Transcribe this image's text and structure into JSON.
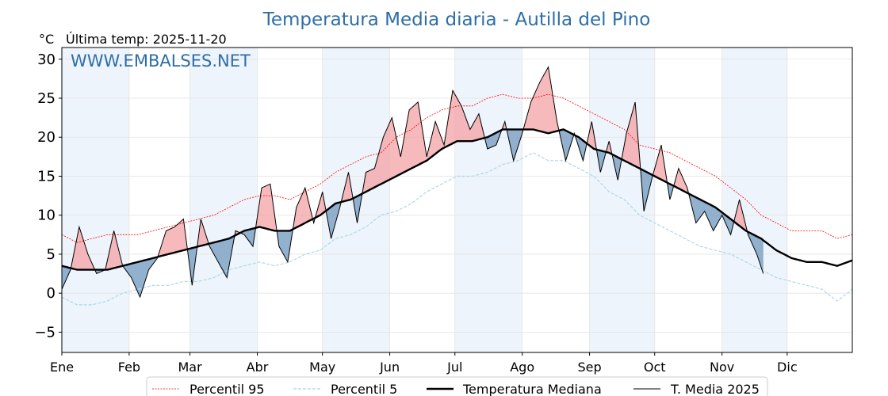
{
  "chart_data": {
    "type": "line",
    "title": "Temperatura Media diaria - Autilla del Pino",
    "ylabel": "°C",
    "subtitle": "Última temp: 2025-11-20",
    "watermark": "WWW.EMBALSES.NET",
    "xlabel": "",
    "xlim": [
      0,
      364
    ],
    "ylim": [
      -7.6,
      31.5
    ],
    "yticks": [
      -5,
      0,
      5,
      10,
      15,
      20,
      25,
      30
    ],
    "xticks": [
      {
        "label": "Ene",
        "day": 0
      },
      {
        "label": "Feb",
        "day": 31
      },
      {
        "label": "Mar",
        "day": 59
      },
      {
        "label": "Abr",
        "day": 90
      },
      {
        "label": "May",
        "day": 120
      },
      {
        "label": "Jun",
        "day": 151
      },
      {
        "label": "Jul",
        "day": 181
      },
      {
        "label": "Ago",
        "day": 212
      },
      {
        "label": "Sep",
        "day": 243
      },
      {
        "label": "Oct",
        "day": 273
      },
      {
        "label": "Nov",
        "day": 304
      },
      {
        "label": "Dic",
        "day": 334
      }
    ],
    "grid": true,
    "legend_position": "bottom-center",
    "colors": {
      "p95": "#ff0000",
      "p5": "#add8e6",
      "median": "#000000",
      "t2025": "#000000",
      "above": "#f4a3a6",
      "below": "#7fa3c6",
      "band": "#eef4fb",
      "title": "#2e6ea6"
    },
    "series": [
      {
        "name": "Percentil 95",
        "x_step": 7,
        "values": [
          7.5,
          6.5,
          7,
          7.5,
          7.5,
          7.5,
          8,
          8.5,
          9,
          9.5,
          10,
          11,
          12,
          12.5,
          12.5,
          12,
          13,
          14,
          15.5,
          16.5,
          17.5,
          18,
          20,
          21,
          22.5,
          23.5,
          24,
          24,
          25,
          25.5,
          25,
          25,
          25.5,
          25,
          24,
          23,
          22,
          21,
          19,
          18.5,
          18,
          17,
          16,
          15,
          13.5,
          12,
          10,
          9,
          8,
          8,
          8,
          7,
          7.5
        ]
      },
      {
        "name": "Percentil 5",
        "x_step": 7,
        "values": [
          -0.5,
          -1.5,
          -1.5,
          -1,
          0,
          0.5,
          1,
          1,
          1.5,
          1.5,
          2,
          3,
          3.5,
          4,
          3.5,
          4,
          5,
          5.5,
          7,
          7.5,
          8.5,
          10,
          10.5,
          11.5,
          13,
          14,
          15,
          15,
          15.5,
          16.5,
          17,
          18,
          17,
          17,
          16,
          15,
          13,
          12,
          10,
          9,
          8,
          7,
          6,
          5.5,
          5,
          4,
          3,
          2,
          1.5,
          1,
          0.5,
          -1,
          0.5
        ]
      },
      {
        "name": "Temperatura Mediana",
        "x_step": 7,
        "values": [
          3.5,
          3,
          3,
          3,
          3.5,
          4,
          4.5,
          5,
          5.5,
          6,
          6.5,
          7,
          8,
          8.5,
          8,
          8,
          9,
          10,
          11.5,
          12,
          13,
          14,
          15,
          16,
          17,
          18.5,
          19.5,
          19.5,
          20,
          21,
          21,
          21,
          20.5,
          21,
          20,
          18.5,
          18,
          17,
          16,
          15,
          14,
          13,
          12,
          11,
          9.5,
          8,
          7,
          5.5,
          4.5,
          4,
          4,
          3.5,
          4.2
        ]
      },
      {
        "name": "T. Media 2025",
        "x_step": 4,
        "values": [
          0.5,
          3,
          8.5,
          5,
          2.5,
          3,
          8,
          3.5,
          2,
          -0.5,
          3,
          4.5,
          8,
          8.5,
          9.5,
          1,
          9.5,
          6,
          4,
          2,
          8,
          7.5,
          6,
          13.5,
          14,
          6,
          4,
          11,
          13.5,
          9,
          13,
          7,
          11,
          15.5,
          9,
          15.5,
          16,
          20,
          22.5,
          17.5,
          23.5,
          24.5,
          17.5,
          22,
          19,
          26,
          24,
          21,
          23,
          18.5,
          19,
          22,
          17,
          20.5,
          24.5,
          27,
          29,
          22,
          17,
          20.5,
          17,
          22,
          15.5,
          19.5,
          14.5,
          20.5,
          24.5,
          10.5,
          15,
          19,
          12,
          16,
          13.5,
          9,
          10.5,
          8,
          10,
          7.5,
          12,
          7.5,
          5,
          2.5
        ]
      }
    ]
  }
}
